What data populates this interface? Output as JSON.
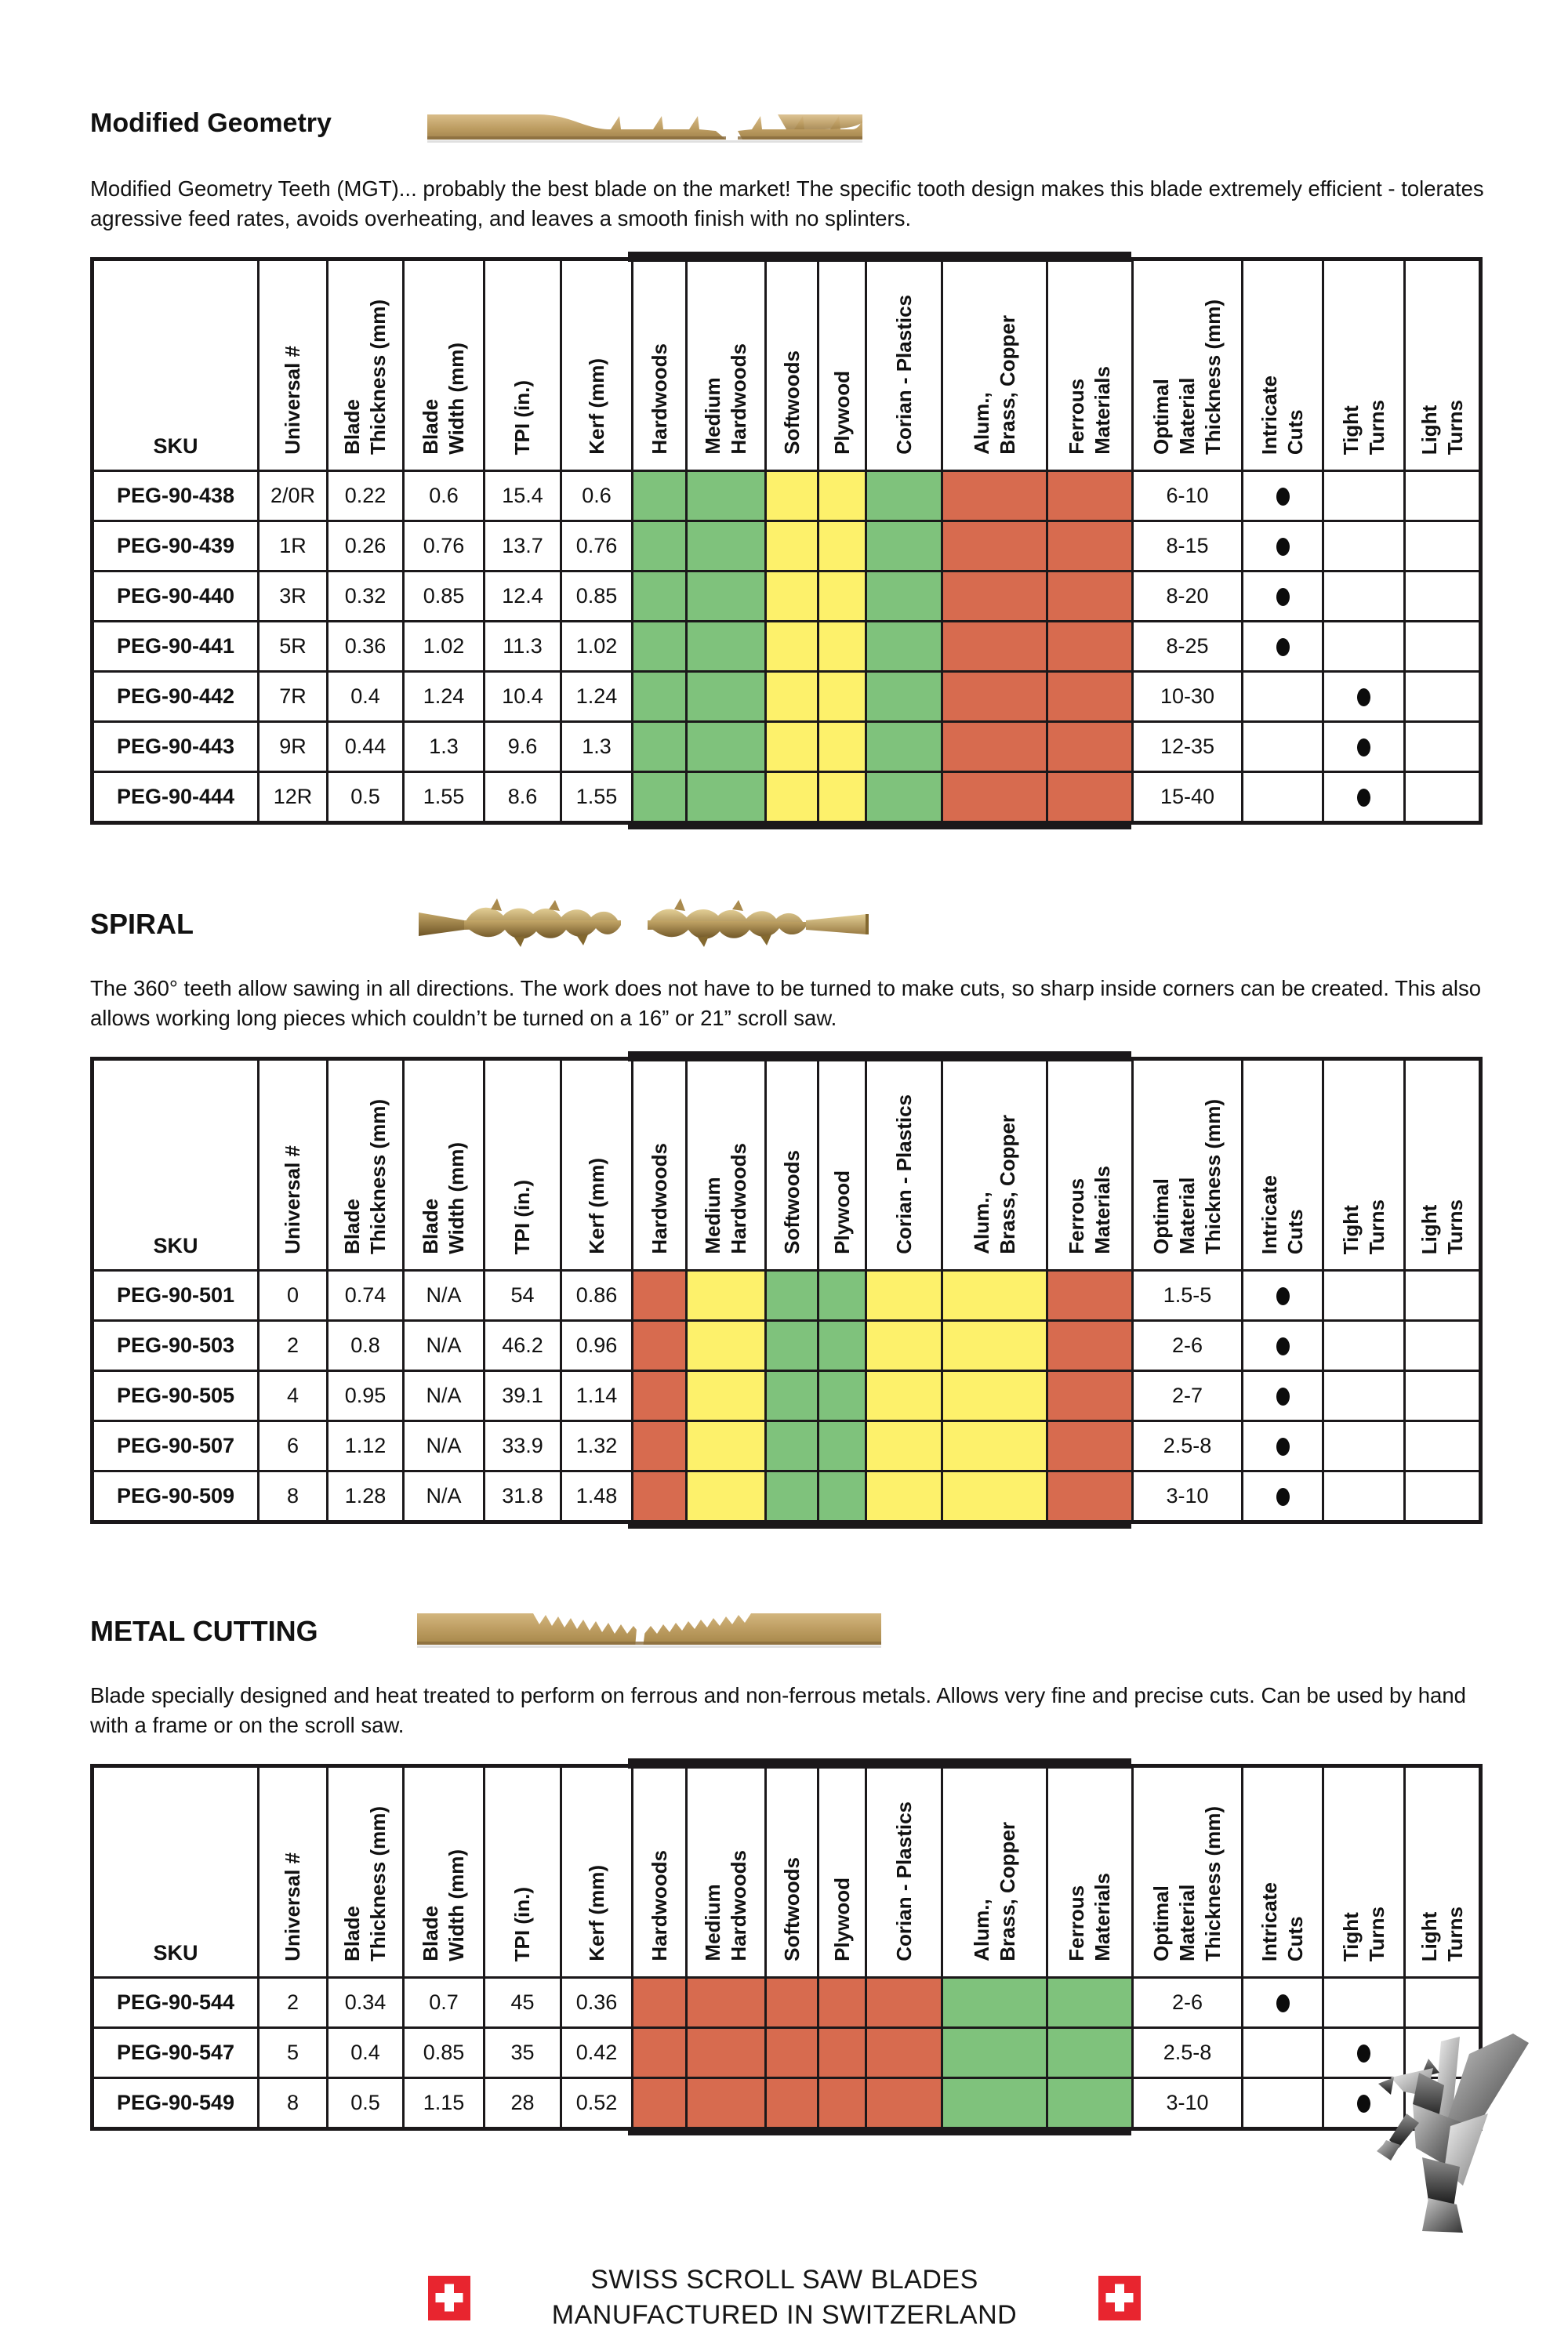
{
  "columns": [
    {
      "label": "SKU",
      "slug": "sku"
    },
    {
      "label": "Universal #",
      "slug": "universal-number"
    },
    {
      "label": "Blade\nThickness (mm)",
      "slug": "blade-thickness"
    },
    {
      "label": "Blade\nWidth (mm)",
      "slug": "blade-width"
    },
    {
      "label": "TPI (in.)",
      "slug": "tpi"
    },
    {
      "label": "Kerf (mm)",
      "slug": "kerf"
    },
    {
      "label": "Hardwoods",
      "slug": "hardwoods"
    },
    {
      "label": "Medium\nHardwoods",
      "slug": "medium-hardwoods"
    },
    {
      "label": "Softwoods",
      "slug": "softwoods"
    },
    {
      "label": "Plywood",
      "slug": "plywood"
    },
    {
      "label": "Corian - Plastics",
      "slug": "corian-plastics"
    },
    {
      "label": "Alum.,\nBrass, Copper",
      "slug": "alum-brass-copper"
    },
    {
      "label": "Ferrous\nMaterials",
      "slug": "ferrous-materials"
    },
    {
      "label": "Optimal\nMaterial\nThickness (mm)",
      "slug": "optimal-material-thickness"
    },
    {
      "label": "Intricate\nCuts",
      "slug": "intricate-cuts"
    },
    {
      "label": "Tight\nTurns",
      "slug": "tight-turns"
    },
    {
      "label": "Light\nTurns",
      "slug": "light-turns"
    }
  ],
  "colors": {
    "green": "#7fc27c",
    "yellow": "#fdf16b",
    "red": "#d76b4f",
    "table_border": "#1b181a",
    "flag_red": "#e8252f",
    "blade_tan": "#c2a164"
  },
  "sections": [
    {
      "title": "Modified Geometry",
      "blade_image": "modified-geometry-blade-image",
      "description": "Modified Geometry Teeth (MGT)... probably the best blade on the market! The specific tooth design makes this blade extremely efficient - tolerates agressive feed rates, avoids overheating, and leaves a smooth finish with no splinters.",
      "material_ratings": [
        "green",
        "green",
        "yellow",
        "yellow",
        "green",
        "red",
        "red"
      ],
      "rows": [
        {
          "sku": "PEG-90-438",
          "universal": "2/0R",
          "blade_thickness": "0.22",
          "blade_width": "0.6",
          "tpi": "15.4",
          "kerf": "0.6",
          "optimal_thickness": "6-10",
          "intricate_cuts": true,
          "tight_turns": false,
          "light_turns": false
        },
        {
          "sku": "PEG-90-439",
          "universal": "1R",
          "blade_thickness": "0.26",
          "blade_width": "0.76",
          "tpi": "13.7",
          "kerf": "0.76",
          "optimal_thickness": "8-15",
          "intricate_cuts": true,
          "tight_turns": false,
          "light_turns": false
        },
        {
          "sku": "PEG-90-440",
          "universal": "3R",
          "blade_thickness": "0.32",
          "blade_width": "0.85",
          "tpi": "12.4",
          "kerf": "0.85",
          "optimal_thickness": "8-20",
          "intricate_cuts": true,
          "tight_turns": false,
          "light_turns": false
        },
        {
          "sku": "PEG-90-441",
          "universal": "5R",
          "blade_thickness": "0.36",
          "blade_width": "1.02",
          "tpi": "11.3",
          "kerf": "1.02",
          "optimal_thickness": "8-25",
          "intricate_cuts": true,
          "tight_turns": false,
          "light_turns": false
        },
        {
          "sku": "PEG-90-442",
          "universal": "7R",
          "blade_thickness": "0.4",
          "blade_width": "1.24",
          "tpi": "10.4",
          "kerf": "1.24",
          "optimal_thickness": "10-30",
          "intricate_cuts": false,
          "tight_turns": true,
          "light_turns": false
        },
        {
          "sku": "PEG-90-443",
          "universal": "9R",
          "blade_thickness": "0.44",
          "blade_width": "1.3",
          "tpi": "9.6",
          "kerf": "1.3",
          "optimal_thickness": "12-35",
          "intricate_cuts": false,
          "tight_turns": true,
          "light_turns": false
        },
        {
          "sku": "PEG-90-444",
          "universal": "12R",
          "blade_thickness": "0.5",
          "blade_width": "1.55",
          "tpi": "8.6",
          "kerf": "1.55",
          "optimal_thickness": "15-40",
          "intricate_cuts": false,
          "tight_turns": true,
          "light_turns": false
        }
      ]
    },
    {
      "title": "SPIRAL",
      "blade_image": "spiral-blade-image",
      "description": "The 360° teeth allow sawing in all directions. The work does not have to be turned to make cuts, so sharp inside corners can be created. This also allows working long pieces which couldn’t be turned on a 16” or 21” scroll saw.",
      "material_ratings": [
        "red",
        "yellow",
        "green",
        "green",
        "yellow",
        "yellow",
        "red"
      ],
      "rows": [
        {
          "sku": "PEG-90-501",
          "universal": "0",
          "blade_thickness": "0.74",
          "blade_width": "N/A",
          "tpi": "54",
          "kerf": "0.86",
          "optimal_thickness": "1.5-5",
          "intricate_cuts": true,
          "tight_turns": false,
          "light_turns": false
        },
        {
          "sku": "PEG-90-503",
          "universal": "2",
          "blade_thickness": "0.8",
          "blade_width": "N/A",
          "tpi": "46.2",
          "kerf": "0.96",
          "optimal_thickness": "2-6",
          "intricate_cuts": true,
          "tight_turns": false,
          "light_turns": false
        },
        {
          "sku": "PEG-90-505",
          "universal": "4",
          "blade_thickness": "0.95",
          "blade_width": "N/A",
          "tpi": "39.1",
          "kerf": "1.14",
          "optimal_thickness": "2-7",
          "intricate_cuts": true,
          "tight_turns": false,
          "light_turns": false
        },
        {
          "sku": "PEG-90-507",
          "universal": "6",
          "blade_thickness": "1.12",
          "blade_width": "N/A",
          "tpi": "33.9",
          "kerf": "1.32",
          "optimal_thickness": "2.5-8",
          "intricate_cuts": true,
          "tight_turns": false,
          "light_turns": false
        },
        {
          "sku": "PEG-90-509",
          "universal": "8",
          "blade_thickness": "1.28",
          "blade_width": "N/A",
          "tpi": "31.8",
          "kerf": "1.48",
          "optimal_thickness": "3-10",
          "intricate_cuts": true,
          "tight_turns": false,
          "light_turns": false
        }
      ]
    },
    {
      "title": "METAL CUTTING",
      "blade_image": "metal-cutting-blade-image",
      "description": "Blade specially designed and heat treated to perform on ferrous and non-ferrous metals. Allows very fine and precise cuts. Can be used by hand with a frame or on the scroll saw.",
      "material_ratings": [
        "red",
        "red",
        "red",
        "red",
        "red",
        "green",
        "green"
      ],
      "rows": [
        {
          "sku": "PEG-90-544",
          "universal": "2",
          "blade_thickness": "0.34",
          "blade_width": "0.7",
          "tpi": "45",
          "kerf": "0.36",
          "optimal_thickness": "2-6",
          "intricate_cuts": true,
          "tight_turns": false,
          "light_turns": false
        },
        {
          "sku": "PEG-90-547",
          "universal": "5",
          "blade_thickness": "0.4",
          "blade_width": "0.85",
          "tpi": "35",
          "kerf": "0.42",
          "optimal_thickness": "2.5-8",
          "intricate_cuts": false,
          "tight_turns": true,
          "light_turns": false
        },
        {
          "sku": "PEG-90-549",
          "universal": "8",
          "blade_thickness": "0.5",
          "blade_width": "1.15",
          "tpi": "28",
          "kerf": "0.52",
          "optimal_thickness": "3-10",
          "intricate_cuts": false,
          "tight_turns": true,
          "light_turns": false
        }
      ]
    }
  ],
  "footer": {
    "line1": "SWISS SCROLL SAW BLADES",
    "line2": "MANUFACTURED IN SWITZERLAND",
    "left_icon": "swiss-flag-icon",
    "right_icon": "swiss-flag-icon",
    "logo": "pegasus-logo"
  }
}
